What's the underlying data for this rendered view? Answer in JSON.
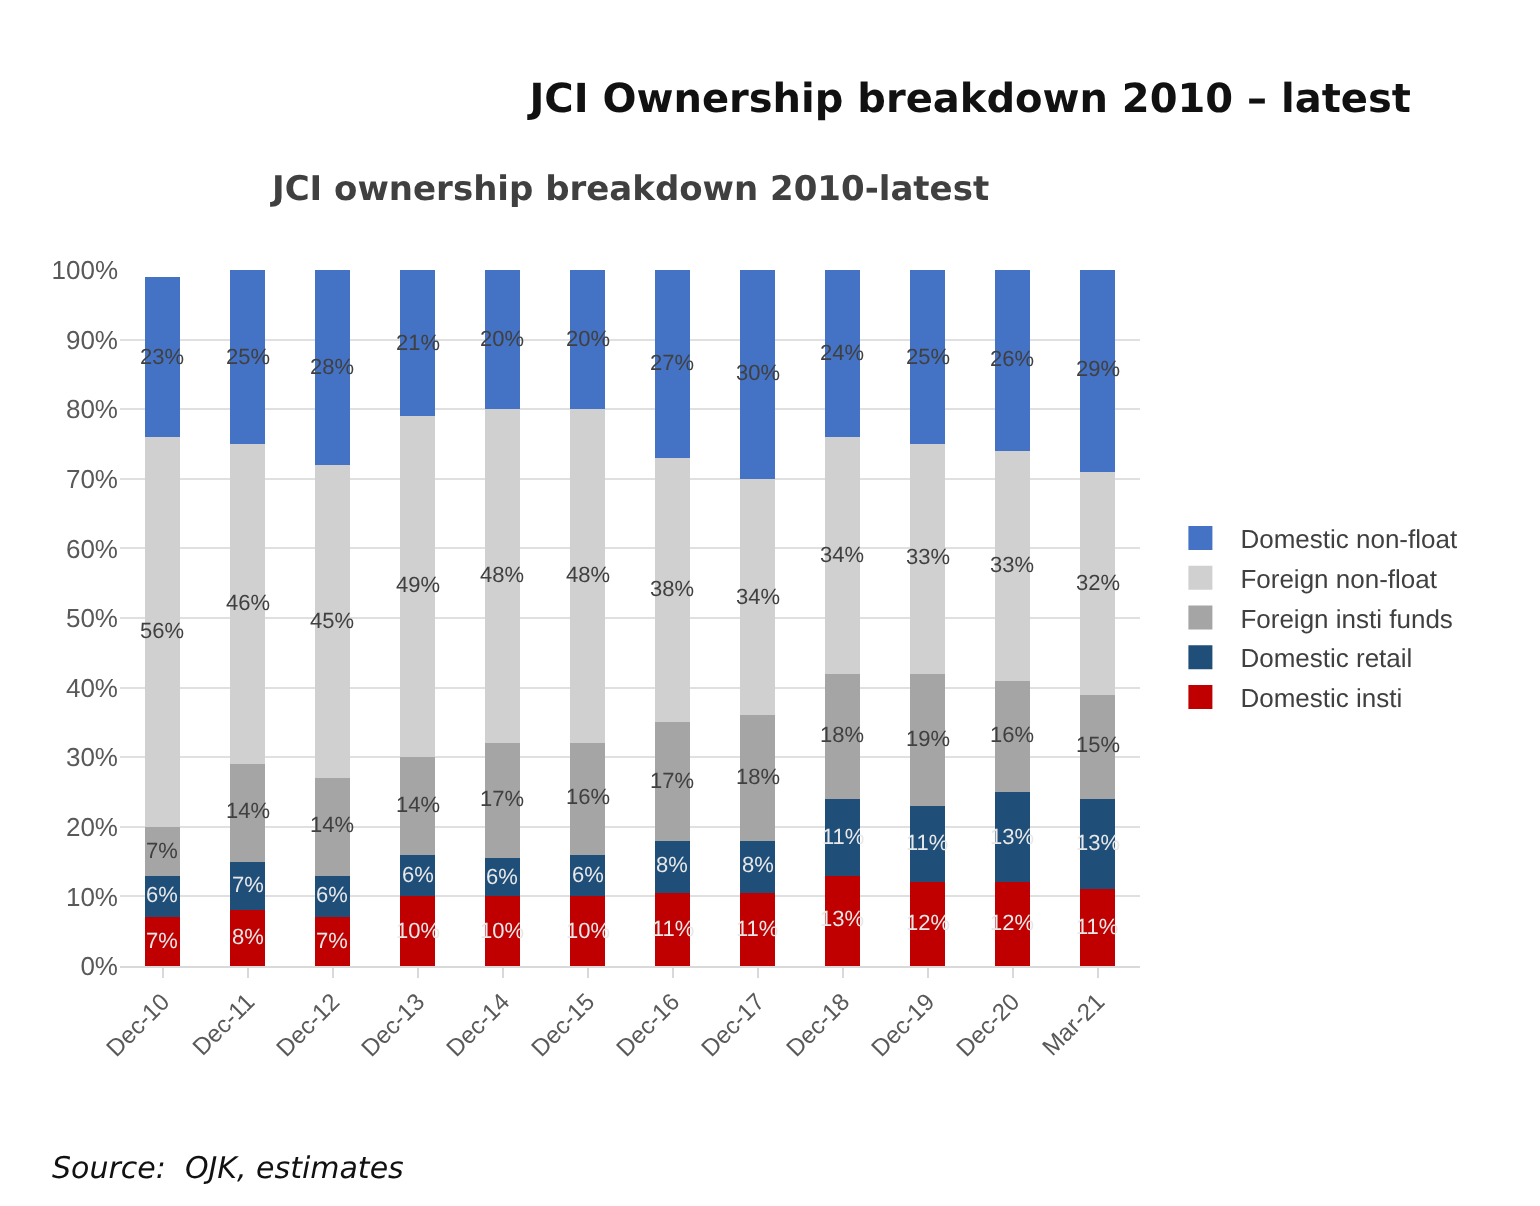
{
  "chart_data": {
    "type": "bar",
    "stacked": true,
    "title": "JCI Ownership breakdown 2010 – latest",
    "subtitle": "JCI ownership breakdown 2010-latest",
    "categories": [
      "Dec-10",
      "Dec-11",
      "Dec-12",
      "Dec-13",
      "Dec-14",
      "Dec-15",
      "Dec-16",
      "Dec-17",
      "Dec-18",
      "Dec-19",
      "Dec-20",
      "Mar-21"
    ],
    "series": [
      {
        "name": "Domestic insti",
        "color": "#c00000",
        "values": [
          7,
          8,
          7,
          10,
          10,
          10,
          10.5,
          10.5,
          13,
          12,
          12,
          11
        ],
        "value_labels": [
          "7%",
          "8%",
          "7%",
          "10%",
          "10%",
          "10%",
          "11%",
          "11%",
          "13%",
          "12%",
          "12%",
          "11%"
        ]
      },
      {
        "name": "Domestic retail",
        "color": "#1f4e79",
        "values": [
          6,
          7,
          6,
          6,
          5.5,
          6,
          7.5,
          7.5,
          11,
          11,
          13,
          13
        ],
        "value_labels": [
          "6%",
          "7%",
          "6%",
          "6%",
          "6%",
          "6%",
          "8%",
          "8%",
          "11%",
          "11%",
          "13%",
          "13%"
        ]
      },
      {
        "name": "Foreign insti funds",
        "color": "#a5a5a5",
        "values": [
          7,
          14,
          14,
          14,
          16.5,
          16,
          17,
          18,
          18,
          19,
          16,
          15
        ],
        "value_labels": [
          "7%",
          "14%",
          "14%",
          "14%",
          "17%",
          "16%",
          "17%",
          "18%",
          "18%",
          "19%",
          "16%",
          "15%"
        ]
      },
      {
        "name": "Foreign non-float",
        "color": "#d0d0d0",
        "values": [
          56,
          46,
          45,
          49,
          48,
          48,
          38,
          34,
          34,
          33,
          33,
          32
        ],
        "value_labels": [
          "56%",
          "46%",
          "45%",
          "49%",
          "48%",
          "48%",
          "38%",
          "34%",
          "34%",
          "33%",
          "33%",
          "32%"
        ]
      },
      {
        "name": "Domestic non-float",
        "color": "#4472c4",
        "values": [
          23,
          25,
          28,
          21,
          20,
          20,
          27,
          30,
          24,
          25,
          26,
          29
        ],
        "value_labels": [
          "23%",
          "25%",
          "28%",
          "21%",
          "20%",
          "20%",
          "27%",
          "30%",
          "24%",
          "25%",
          "26%",
          "29%"
        ]
      }
    ],
    "ylim": [
      0,
      100
    ],
    "yticks": [
      {
        "value": 0,
        "label": "0%"
      },
      {
        "value": 10,
        "label": "10%"
      },
      {
        "value": 20,
        "label": "20%"
      },
      {
        "value": 30,
        "label": "30%"
      },
      {
        "value": 40,
        "label": "40%"
      },
      {
        "value": 50,
        "label": "50%"
      },
      {
        "value": 60,
        "label": "60%"
      },
      {
        "value": 70,
        "label": "70%"
      },
      {
        "value": 80,
        "label": "80%"
      },
      {
        "value": 90,
        "label": "90%"
      },
      {
        "value": 100,
        "label": "100%"
      }
    ],
    "grid": "y",
    "legend": "right",
    "annotations": [
      "Source:  OJK, estimates"
    ]
  }
}
